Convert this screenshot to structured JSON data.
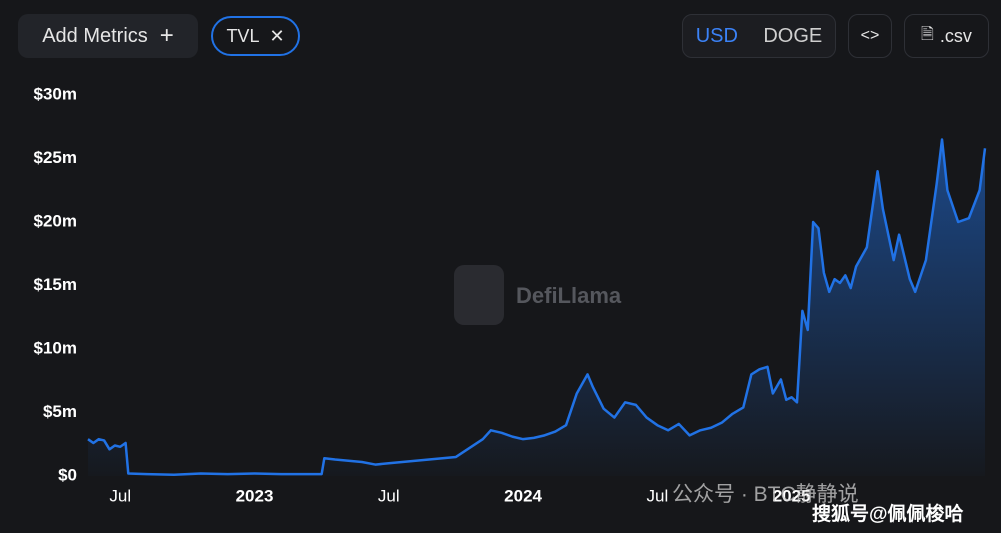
{
  "ui": {
    "add_metrics": "Add Metrics",
    "metric_pill": "TVL",
    "currency_usd": "USD",
    "currency_doge": "DOGE",
    "embed": "<>",
    "csv": ".csv",
    "watermark": "DefiLlama",
    "footer_wechat": "公众号 · BTC静静说",
    "footer_sohu": "搜狐号@佩佩梭哈"
  },
  "chart_data": {
    "type": "line",
    "x": [
      2022.38,
      2022.4,
      2022.42,
      2022.44,
      2022.46,
      2022.48,
      2022.5,
      2022.52,
      2022.53,
      2022.6,
      2022.7,
      2022.8,
      2022.9,
      2023.0,
      2023.1,
      2023.2,
      2023.25,
      2023.26,
      2023.3,
      2023.35,
      2023.4,
      2023.45,
      2023.5,
      2023.55,
      2023.6,
      2023.65,
      2023.7,
      2023.75,
      2023.8,
      2023.85,
      2023.88,
      2023.92,
      2023.96,
      2024.0,
      2024.04,
      2024.08,
      2024.12,
      2024.16,
      2024.2,
      2024.24,
      2024.26,
      2024.3,
      2024.34,
      2024.38,
      2024.42,
      2024.46,
      2024.5,
      2024.54,
      2024.58,
      2024.62,
      2024.66,
      2024.7,
      2024.74,
      2024.78,
      2024.82,
      2024.85,
      2024.88,
      2024.91,
      2024.93,
      2024.96,
      2024.98,
      2025.0,
      2025.02,
      2025.04,
      2025.06,
      2025.08,
      2025.1,
      2025.12,
      2025.14,
      2025.16,
      2025.18,
      2025.2,
      2025.22,
      2025.24,
      2025.28,
      2025.32,
      2025.34,
      2025.38,
      2025.4,
      2025.44,
      2025.46,
      2025.5,
      2025.54,
      2025.56,
      2025.58,
      2025.62,
      2025.66,
      2025.7,
      2025.72
    ],
    "series": [
      {
        "name": "TVL",
        "color": "#2172e5",
        "values": [
          2.9,
          2.6,
          2.9,
          2.8,
          2.1,
          2.4,
          2.3,
          2.6,
          0.2,
          0.15,
          0.1,
          0.2,
          0.15,
          0.2,
          0.15,
          0.15,
          0.15,
          1.4,
          1.3,
          1.2,
          1.1,
          0.9,
          1.0,
          1.1,
          1.2,
          1.3,
          1.4,
          1.5,
          2.2,
          2.9,
          3.6,
          3.4,
          3.1,
          2.9,
          3.0,
          3.2,
          3.5,
          4.0,
          6.5,
          8.0,
          7.0,
          5.3,
          4.6,
          5.8,
          5.6,
          4.6,
          4.0,
          3.6,
          4.1,
          3.2,
          3.6,
          3.8,
          4.2,
          4.9,
          5.4,
          8.0,
          8.4,
          8.6,
          6.5,
          7.6,
          6.0,
          6.2,
          5.8,
          13.0,
          11.5,
          20.0,
          19.5,
          16.0,
          14.5,
          15.5,
          15.2,
          15.8,
          14.8,
          16.5,
          18.0,
          24.0,
          21.0,
          17.0,
          19.0,
          15.5,
          14.5,
          17.0,
          23.0,
          26.5,
          22.5,
          20.0,
          20.3,
          22.5,
          25.8
        ]
      }
    ],
    "xlim": [
      2022.38,
      2025.72
    ],
    "xticks": [
      {
        "value": 2022.5,
        "label": "Jul"
      },
      2023,
      {
        "value": 2023.5,
        "label": "Jul"
      },
      2024,
      {
        "value": 2024.5,
        "label": "Jul"
      },
      2025
    ],
    "ylim": [
      0,
      30
    ],
    "yticks": [
      {
        "value": 0,
        "label": "$0"
      },
      {
        "value": 5,
        "label": "$5m"
      },
      {
        "value": 10,
        "label": "$10m"
      },
      {
        "value": 15,
        "label": "$15m"
      },
      {
        "value": 20,
        "label": "$20m"
      },
      {
        "value": 25,
        "label": "$25m"
      },
      {
        "value": 30,
        "label": "$30m"
      }
    ]
  }
}
